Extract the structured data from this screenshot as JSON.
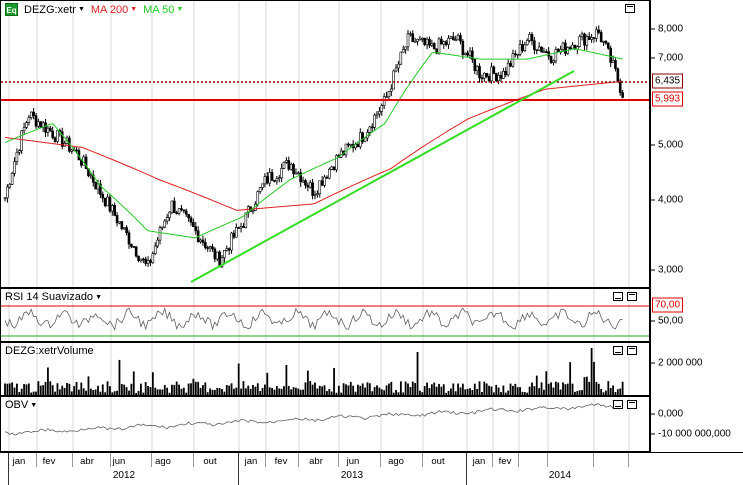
{
  "price_panel": {
    "symbol": "DEZG:xetr",
    "icon": "equity-icon",
    "icon_text": "Eq",
    "indicators": [
      {
        "label": "MA 200",
        "color": "#e02020"
      },
      {
        "label": "MA 50",
        "color": "#22cc22"
      }
    ],
    "axis_ticks": [
      "8,000",
      "7,000",
      "5,000",
      "4,000",
      "3,000"
    ],
    "price_labels": [
      {
        "text": "6,435",
        "color": "#8b0000",
        "style": "dotted"
      },
      {
        "text": "5,993",
        "color": "#e00000",
        "style": "solid"
      }
    ]
  },
  "rsi_panel": {
    "title": "RSI 14 Suavizado",
    "axis_ticks": [
      "70,00",
      "50,00"
    ]
  },
  "volume_panel": {
    "title": "DEZG:xetrVolume",
    "axis_ticks": [
      "2 000 000"
    ]
  },
  "obv_panel": {
    "title": "OBV",
    "axis_ticks": [
      "0,000",
      "-10 000 000,000"
    ]
  },
  "x_axis": {
    "months": [
      "jan",
      "fev",
      "abr",
      "jun",
      "ago",
      "out",
      "jan",
      "fev",
      "abr",
      "jun",
      "ago",
      "out",
      "jan",
      "fev"
    ],
    "years": [
      "2012",
      "2013",
      "2014"
    ]
  },
  "colors": {
    "candles": "#000000",
    "ma200": "#e02020",
    "ma50": "#22cc22",
    "trendline": "#33dd22",
    "support": "#e00000",
    "resistance_dotted": "#8b0000",
    "rsi_line": "#606060",
    "obv_line": "#606060"
  },
  "chart_data": {
    "type": "line",
    "title": "DEZG:xetr",
    "scale": "log",
    "ylim": [
      2.8,
      8.5
    ],
    "series": [
      {
        "name": "DEZG:xetr",
        "x": [
          "2012-01",
          "2012-02",
          "2012-03",
          "2012-04",
          "2012-05",
          "2012-06",
          "2012-07",
          "2012-08",
          "2012-09",
          "2012-10",
          "2012-11",
          "2012-12",
          "2013-01",
          "2013-02",
          "2013-03",
          "2013-04",
          "2013-05",
          "2013-06",
          "2013-07",
          "2013-08",
          "2013-09",
          "2013-10",
          "2013-11",
          "2013-12",
          "2014-01",
          "2014-02",
          "2014-03"
        ],
        "values": [
          4.0,
          5.6,
          5.2,
          4.8,
          4.1,
          3.5,
          3.0,
          3.9,
          3.5,
          3.1,
          3.6,
          4.3,
          4.6,
          4.1,
          4.7,
          5.1,
          5.9,
          7.6,
          7.3,
          7.6,
          6.6,
          6.6,
          7.6,
          7.1,
          7.5,
          7.8,
          6.1
        ]
      },
      {
        "name": "MA 200",
        "x": [
          "2012-03",
          "2012-06",
          "2012-09",
          "2012-12",
          "2013-03",
          "2013-06",
          "2013-09",
          "2013-12",
          "2014-03"
        ],
        "values": [
          5.1,
          4.9,
          4.3,
          3.8,
          3.9,
          4.5,
          5.5,
          6.2,
          6.4
        ]
      },
      {
        "name": "MA 50",
        "x": [
          "2012-02",
          "2012-04",
          "2012-06",
          "2012-08",
          "2012-10",
          "2012-12",
          "2013-02",
          "2013-04",
          "2013-06",
          "2013-08",
          "2013-10",
          "2013-12",
          "2014-02",
          "2014-03"
        ],
        "values": [
          5.0,
          5.4,
          4.2,
          3.5,
          3.4,
          3.7,
          4.3,
          4.7,
          5.4,
          7.2,
          7.0,
          7.0,
          7.3,
          7.0
        ]
      }
    ],
    "annotations": [
      "6,435",
      "5,993"
    ]
  }
}
